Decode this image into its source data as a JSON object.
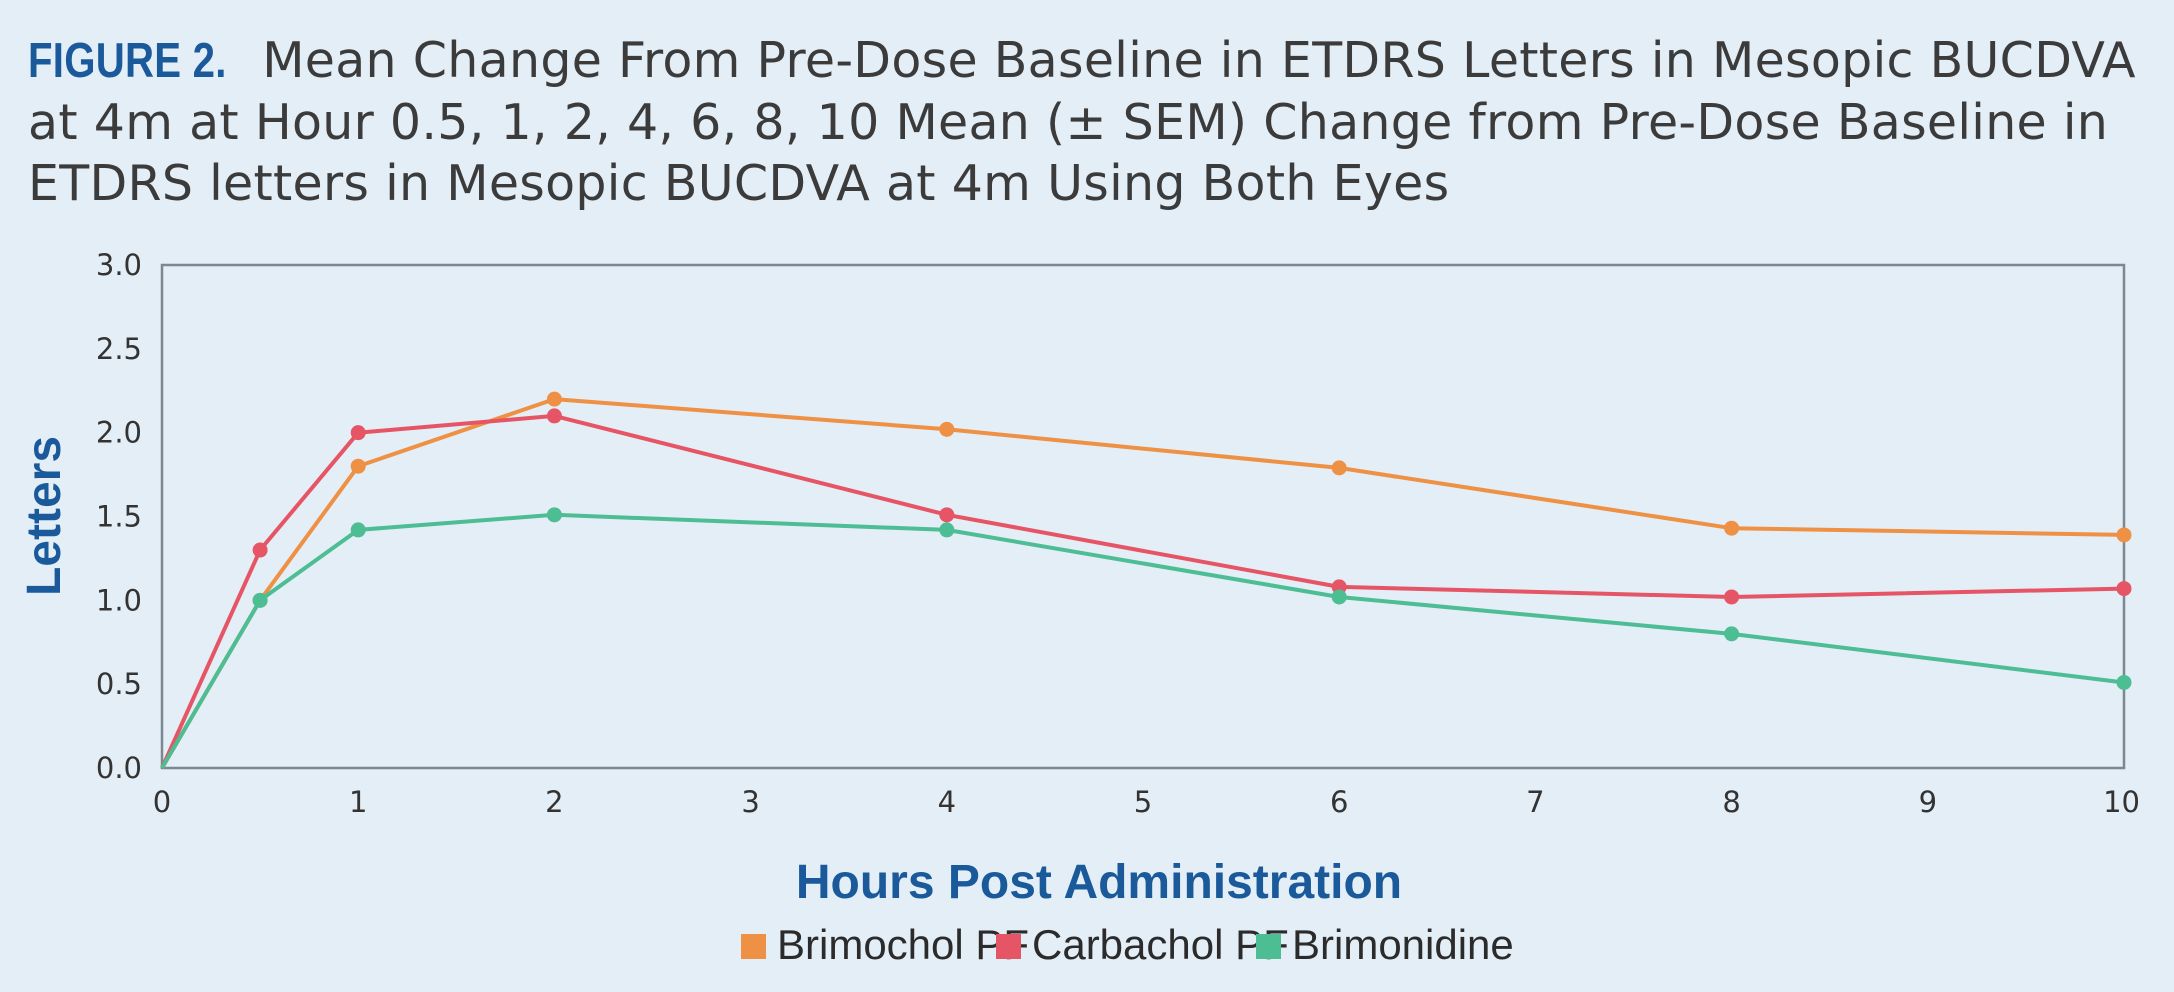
{
  "figure": {
    "label": "FIGURE 2.",
    "caption": "Mean Change From Pre-Dose Baseline in ETDRS Letters in Mesopic BUCDVA at 4m at Hour 0.5, 1, 2, 4, 6, 8, 10 Mean (± SEM) Change from Pre-Dose Baseline in ETDRS letters in Mesopic BUCDVA at 4m Using Both Eyes"
  },
  "chart_data": {
    "type": "line",
    "title": "Mean Change From Pre-Dose Baseline in ETDRS Letters in Mesopic BUCDVA at 4m at Hour 0.5, 1, 2, 4, 6, 8, 10 Mean (± SEM) Change from Pre-Dose Baseline in ETDRS letters in Mesopic BUCDVA at 4m Using Both Eyes",
    "xlabel": "Hours Post Administration",
    "ylabel": "Letters",
    "xlim": [
      0,
      10
    ],
    "ylim": [
      0,
      3
    ],
    "x_ticks": [
      "0",
      "1",
      "2",
      "3",
      "4",
      "5",
      "6",
      "7",
      "8",
      "9",
      "10"
    ],
    "y_ticks": [
      "0.0",
      "0.5",
      "1.0",
      "1.5",
      "2.0",
      "2.5",
      "3.0"
    ],
    "x": [
      0,
      0.5,
      1,
      2,
      4,
      6,
      8,
      10
    ],
    "legend_position": "bottom",
    "series": [
      {
        "name": "Brimochol PF",
        "color": "#ee9145",
        "values": [
          0,
          1.0,
          1.8,
          2.2,
          2.02,
          1.79,
          1.43,
          1.39
        ]
      },
      {
        "name": "Carbachol PF",
        "color": "#e65565",
        "values": [
          0,
          1.3,
          2.0,
          2.1,
          1.51,
          1.08,
          1.02,
          1.07
        ]
      },
      {
        "name": "Brimonidine",
        "color": "#4dbd94",
        "values": [
          0,
          1.0,
          1.42,
          1.51,
          1.42,
          1.02,
          0.8,
          0.51
        ]
      }
    ]
  },
  "colors": {
    "accent": "#1b5a9a",
    "text": "#3b3b3b",
    "axis": "#7d8790",
    "background": "#e4eef6"
  }
}
